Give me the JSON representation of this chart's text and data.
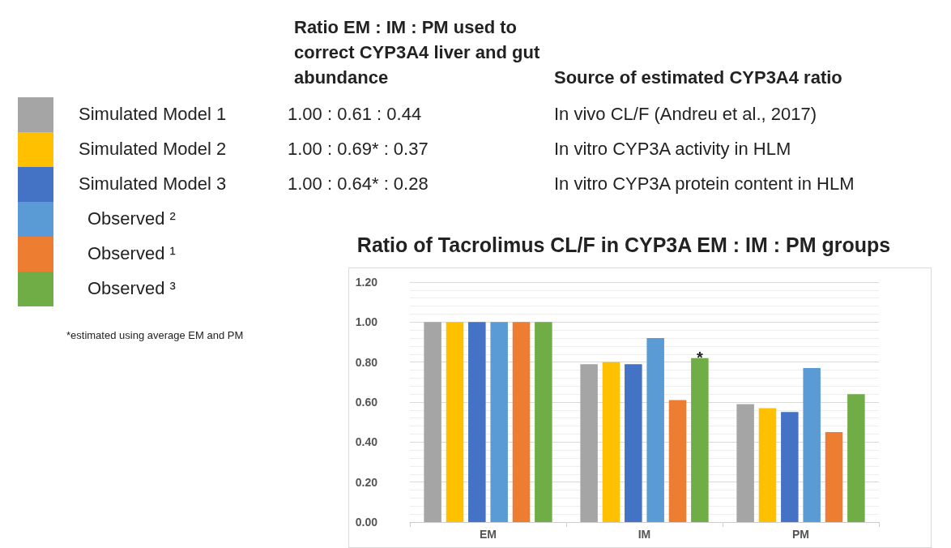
{
  "chart_data": {
    "type": "bar",
    "title": "Ratio of Tacrolimus CL/F in CYP3A EM : IM : PM groups",
    "categories": [
      "EM",
      "IM",
      "PM"
    ],
    "series": [
      {
        "name": "Simulated Model 1",
        "color": "#a5a5a5",
        "values": [
          1.0,
          0.79,
          0.59
        ]
      },
      {
        "name": "Simulated Model 2",
        "color": "#ffc000",
        "values": [
          1.0,
          0.8,
          0.57
        ]
      },
      {
        "name": "Simulated Model 3",
        "color": "#4472c4",
        "values": [
          1.0,
          0.79,
          0.55
        ]
      },
      {
        "name": "Observed ²",
        "color": "#5b9bd5",
        "values": [
          1.0,
          0.92,
          0.77
        ]
      },
      {
        "name": "Observed ¹",
        "color": "#ed7d31",
        "values": [
          1.0,
          0.61,
          0.45
        ]
      },
      {
        "name": "Observed ³",
        "color": "#70ad47",
        "values": [
          1.0,
          0.82,
          0.64
        ]
      }
    ],
    "ylim": [
      0,
      1.2
    ],
    "yticks": [
      {
        "value": 0,
        "label": "0.00"
      },
      {
        "value": 0.2,
        "label": "0.20"
      },
      {
        "value": 0.4,
        "label": "0.40"
      },
      {
        "value": 0.6,
        "label": "0.60"
      },
      {
        "value": 0.8,
        "label": "0.80"
      },
      {
        "value": 1.0,
        "label": "1.00"
      },
      {
        "value": 1.2,
        "label": "1.20"
      }
    ],
    "grid": "y",
    "legend": "left",
    "annotations": [
      "Ratio EM : IM : PM used to correct CYP3A4 liver and gut abundance",
      "Source of estimated CYP3A4 ratio",
      "1.00 : 0.61 : 0.44",
      "In vivo CL/F (Andreu et al., 2017)",
      "1.00 : 0.69* : 0.37",
      "In vitro CYP3A activity in HLM",
      "1.00 : 0.64* : 0.28",
      "In vitro CYP3A protein content in HLM",
      "*estimated using average EM and PM",
      "*"
    ]
  }
}
